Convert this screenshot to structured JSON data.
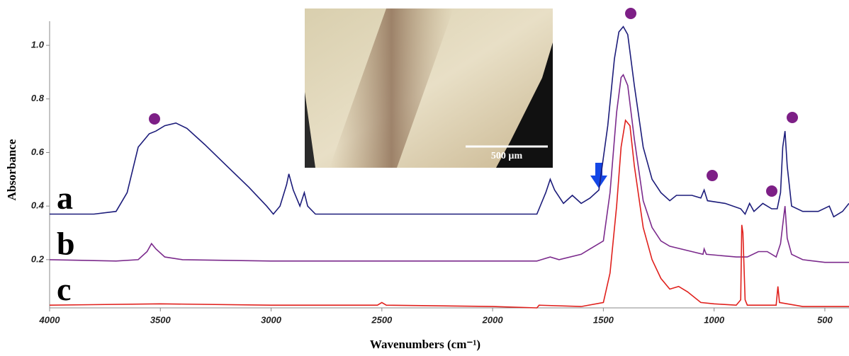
{
  "chart_data": {
    "type": "line",
    "x_label": "Wavenumbers (cm⁻¹)",
    "y_label": "Absorbance",
    "xlim": [
      4000,
      391
    ],
    "ylim": [
      0.02,
      1.09
    ],
    "xticks": [
      4000,
      3500,
      3000,
      2500,
      2000,
      1500,
      1000,
      500
    ],
    "yticks": [
      0.2,
      0.4,
      0.6,
      0.8,
      {
        "value": 1,
        "label": "1.0"
      }
    ],
    "inset_scale_label": "500 µm",
    "series": [
      {
        "name": "a",
        "color": "#1c1c7a",
        "x": [
          4000,
          3800,
          3700,
          3650,
          3600,
          3550,
          3520,
          3480,
          3430,
          3380,
          3300,
          3200,
          3100,
          3020,
          2990,
          2960,
          2930,
          2920,
          2900,
          2870,
          2850,
          2835,
          2800,
          2600,
          2000,
          1800,
          1760,
          1740,
          1720,
          1680,
          1640,
          1600,
          1560,
          1520,
          1480,
          1450,
          1430,
          1410,
          1390,
          1360,
          1320,
          1280,
          1240,
          1200,
          1170,
          1100,
          1060,
          1045,
          1030,
          950,
          880,
          860,
          840,
          820,
          780,
          740,
          715,
          700,
          690,
          680,
          670,
          650,
          600,
          530,
          480,
          460,
          420,
          391
        ],
        "values": [
          0.37,
          0.37,
          0.38,
          0.45,
          0.62,
          0.67,
          0.68,
          0.7,
          0.71,
          0.69,
          0.63,
          0.55,
          0.47,
          0.4,
          0.37,
          0.4,
          0.48,
          0.52,
          0.46,
          0.4,
          0.45,
          0.4,
          0.37,
          0.37,
          0.37,
          0.37,
          0.45,
          0.5,
          0.46,
          0.41,
          0.44,
          0.41,
          0.43,
          0.46,
          0.7,
          0.95,
          1.05,
          1.07,
          1.04,
          0.85,
          0.62,
          0.5,
          0.45,
          0.42,
          0.44,
          0.44,
          0.43,
          0.46,
          0.42,
          0.41,
          0.39,
          0.37,
          0.41,
          0.38,
          0.41,
          0.39,
          0.39,
          0.45,
          0.62,
          0.68,
          0.55,
          0.4,
          0.38,
          0.38,
          0.4,
          0.36,
          0.38,
          0.41
        ]
      },
      {
        "name": "b",
        "color": "#7b2a8c",
        "x": [
          4000,
          3700,
          3600,
          3560,
          3540,
          3520,
          3480,
          3400,
          3000,
          2000,
          1800,
          1740,
          1700,
          1600,
          1560,
          1500,
          1470,
          1440,
          1420,
          1410,
          1390,
          1360,
          1320,
          1280,
          1240,
          1200,
          1100,
          1050,
          1045,
          1035,
          900,
          850,
          800,
          760,
          720,
          700,
          690,
          680,
          670,
          650,
          600,
          500,
          391
        ],
        "values": [
          0.2,
          0.195,
          0.2,
          0.23,
          0.26,
          0.24,
          0.21,
          0.2,
          0.195,
          0.195,
          0.195,
          0.21,
          0.2,
          0.22,
          0.24,
          0.27,
          0.45,
          0.75,
          0.88,
          0.89,
          0.85,
          0.65,
          0.42,
          0.32,
          0.27,
          0.25,
          0.23,
          0.22,
          0.24,
          0.22,
          0.21,
          0.21,
          0.23,
          0.23,
          0.21,
          0.26,
          0.33,
          0.4,
          0.28,
          0.22,
          0.2,
          0.19,
          0.19
        ]
      },
      {
        "name": "c",
        "color": "#e0201c",
        "x": [
          4000,
          3500,
          3000,
          2520,
          2500,
          2480,
          2000,
          1800,
          1790,
          1600,
          1500,
          1470,
          1440,
          1420,
          1400,
          1380,
          1360,
          1320,
          1280,
          1240,
          1200,
          1160,
          1120,
          1060,
          1000,
          900,
          880,
          875,
          870,
          860,
          850,
          720,
          712,
          705,
          600,
          391
        ],
        "values": [
          0.03,
          0.035,
          0.03,
          0.03,
          0.04,
          0.03,
          0.025,
          0.02,
          0.03,
          0.025,
          0.04,
          0.15,
          0.4,
          0.62,
          0.72,
          0.7,
          0.55,
          0.32,
          0.2,
          0.13,
          0.09,
          0.1,
          0.08,
          0.04,
          0.035,
          0.03,
          0.05,
          0.33,
          0.3,
          0.05,
          0.03,
          0.03,
          0.1,
          0.04,
          0.025,
          0.025
        ]
      }
    ]
  }
}
